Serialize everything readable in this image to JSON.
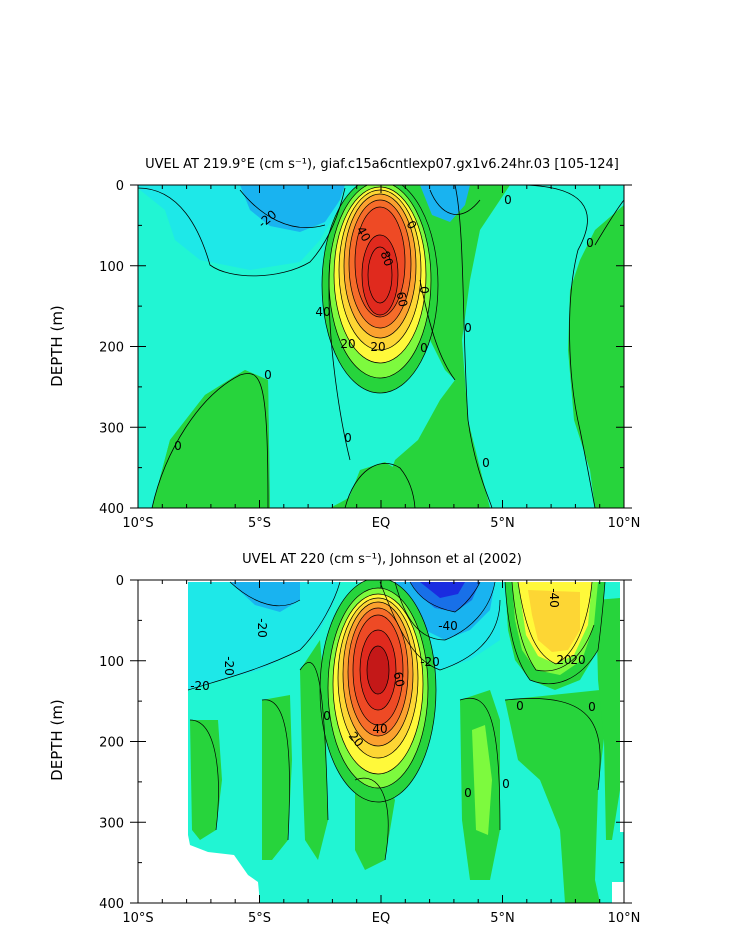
{
  "chart_data": [
    {
      "type": "heatmap",
      "title": "UVEL AT 219.9°E (cm s⁻¹), giaf.c15a6cntlexp07.gx1v6.24hr.03 [105-124]",
      "ylabel": "DEPTH (m)",
      "xlabel": "",
      "x_ticks": [
        "10°S",
        "5°S",
        "EQ",
        "5°N",
        "10°N"
      ],
      "y_ticks": [
        "0",
        "100",
        "200",
        "300",
        "400"
      ],
      "xlim": [
        -10,
        10
      ],
      "ylim": [
        0,
        400
      ],
      "contour_labels": [
        "-20",
        "40",
        "80",
        "60",
        "20",
        "0",
        "20",
        "40",
        "0",
        "0",
        "0",
        "0",
        "0",
        "0",
        "0",
        "0",
        "0"
      ]
    },
    {
      "type": "heatmap",
      "title": "UVEL AT 220 (cm s⁻¹), Johnson et al (2002)",
      "ylabel": "DEPTH (m)",
      "xlabel": "",
      "x_ticks": [
        "10°S",
        "5°S",
        "EQ",
        "5°N",
        "10°N"
      ],
      "y_ticks": [
        "0",
        "100",
        "200",
        "300",
        "400"
      ],
      "xlim": [
        -10,
        10
      ],
      "ylim": [
        0,
        400
      ],
      "contour_labels": [
        "-20",
        "-20",
        "-20",
        "20",
        "-40",
        "-20",
        "60",
        "20",
        "40",
        "-40",
        "20",
        "0",
        "0",
        "0",
        "0",
        "0"
      ]
    }
  ]
}
